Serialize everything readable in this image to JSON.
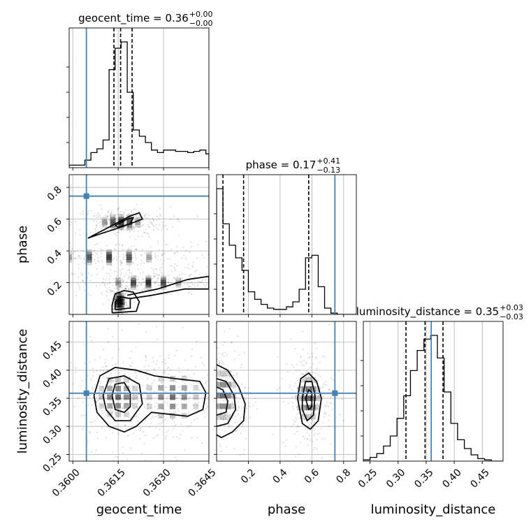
{
  "chart_data": {
    "type": "corner",
    "grid": true,
    "colors": {
      "truth": "#4682b4",
      "hist": "#000000"
    },
    "parameters": [
      {
        "name": "geocent_time",
        "label": "geocent_time",
        "range": [
          0.35988,
          0.3645
        ],
        "ticks": [
          "0.3600",
          "0.3615",
          "0.3630",
          "0.3645"
        ],
        "tick_values": [
          0.36,
          0.3615,
          0.363,
          0.3645
        ],
        "truth": 0.36045
      },
      {
        "name": "phase",
        "label": "phase",
        "range": [
          0.0,
          0.88
        ],
        "ticks": [
          "0.2",
          "0.4",
          "0.6",
          "0.8"
        ],
        "tick_values": [
          0.2,
          0.4,
          0.6,
          0.8
        ],
        "truth": 0.745
      },
      {
        "name": "luminosity_distance",
        "label": "luminosity_distance",
        "range": [
          0.238,
          0.487
        ],
        "ticks": [
          "0.25",
          "0.30",
          "0.35",
          "0.40",
          "0.45"
        ],
        "tick_values": [
          0.25,
          0.3,
          0.35,
          0.4,
          0.45
        ],
        "truth": 0.359
      }
    ],
    "titles": [
      {
        "text": "geocent_time = 0.36",
        "plus": "+0.00",
        "minus": "−0.00"
      },
      {
        "text": "phase = 0.17",
        "plus": "+0.41",
        "minus": "−0.13"
      },
      {
        "text": "luminosity_distance = 0.35",
        "plus": "+0.03",
        "minus": "−0.03"
      }
    ],
    "marginals": [
      {
        "bins": [
          0.35988,
          0.3604,
          0.3606,
          0.3608,
          0.361,
          0.3612,
          0.3614,
          0.3616,
          0.3618,
          0.362,
          0.3622,
          0.3624,
          0.3626,
          0.3628,
          0.363,
          0.3632,
          0.3634,
          0.3636,
          0.3638,
          0.364,
          0.3642,
          0.3644,
          0.3645
        ],
        "counts": [
          0.02,
          0.06,
          0.12,
          0.15,
          0.22,
          0.78,
          0.95,
          1.0,
          0.6,
          0.3,
          0.25,
          0.2,
          0.14,
          0.12,
          0.14,
          0.14,
          0.13,
          0.13,
          0.12,
          0.13,
          0.14,
          0.11
        ],
        "quantiles": [
          0.36136,
          0.36158,
          0.36196
        ]
      },
      {
        "bins": [
          0.0,
          0.04,
          0.08,
          0.12,
          0.16,
          0.2,
          0.24,
          0.28,
          0.32,
          0.36,
          0.4,
          0.44,
          0.48,
          0.52,
          0.56,
          0.6,
          0.64,
          0.68,
          0.72,
          0.76,
          0.8,
          0.84,
          0.88
        ],
        "counts": [
          1.0,
          0.72,
          0.55,
          0.45,
          0.35,
          0.18,
          0.12,
          0.08,
          0.05,
          0.04,
          0.04,
          0.06,
          0.1,
          0.2,
          0.45,
          0.47,
          0.22,
          0.05,
          0.01,
          0.0,
          0.0,
          0.0
        ],
        "quantiles": [
          0.04,
          0.17,
          0.58
        ]
      },
      {
        "bins": [
          0.238,
          0.25,
          0.262,
          0.274,
          0.286,
          0.298,
          0.31,
          0.322,
          0.334,
          0.346,
          0.358,
          0.37,
          0.382,
          0.394,
          0.406,
          0.418,
          0.43,
          0.442,
          0.454,
          0.466,
          0.478,
          0.487
        ],
        "counts": [
          0.01,
          0.03,
          0.06,
          0.12,
          0.2,
          0.34,
          0.52,
          0.72,
          0.88,
          0.97,
          1.0,
          0.82,
          0.55,
          0.3,
          0.17,
          0.1,
          0.05,
          0.02,
          0.01,
          0.0,
          0.0
        ],
        "quantiles": [
          0.314,
          0.348,
          0.38
        ]
      }
    ],
    "pairs": [
      {
        "x": 0,
        "y": 1,
        "blobs": [
          {
            "cx": 0.36155,
            "cy": 0.08,
            "sx": 8e-05,
            "sy": 0.035
          },
          {
            "cx": 0.3625,
            "cy": 0.2,
            "sx": 0.0009,
            "sy": 0.025
          },
          {
            "cx": 0.3616,
            "cy": 0.58,
            "sx": 0.0005,
            "sy": 0.03
          },
          {
            "cx": 0.3612,
            "cy": 0.36,
            "sx": 0.0012,
            "sy": 0.03
          }
        ],
        "contours": [
          [
            [
              0.3613,
              0.01
            ],
            [
              0.3621,
              0.02
            ],
            [
              0.3622,
              0.08
            ],
            [
              0.362,
              0.14
            ],
            [
              0.3617,
              0.15
            ],
            [
              0.3614,
              0.13
            ],
            [
              0.3613,
              0.06
            ],
            [
              0.3613,
              0.01
            ]
          ],
          [
            [
              0.3614,
              0.03
            ],
            [
              0.3619,
              0.04
            ],
            [
              0.3619,
              0.1
            ],
            [
              0.3616,
              0.11
            ],
            [
              0.3614,
              0.08
            ],
            [
              0.3614,
              0.03
            ]
          ],
          [
            [
              0.3618,
              0.12
            ],
            [
              0.3628,
              0.16
            ],
            [
              0.3638,
              0.22
            ],
            [
              0.3645,
              0.24
            ],
            [
              0.3645,
              0.16
            ],
            [
              0.3637,
              0.16
            ],
            [
              0.3626,
              0.12
            ],
            [
              0.3619,
              0.1
            ]
          ],
          [
            [
              0.3605,
              0.48
            ],
            [
              0.3612,
              0.55
            ],
            [
              0.3619,
              0.62
            ],
            [
              0.3622,
              0.64
            ],
            [
              0.3623,
              0.6
            ],
            [
              0.3616,
              0.55
            ],
            [
              0.3608,
              0.5
            ],
            [
              0.3605,
              0.48
            ]
          ],
          [
            [
              0.3614,
              0.56
            ],
            [
              0.3618,
              0.6
            ],
            [
              0.362,
              0.61
            ],
            [
              0.3619,
              0.57
            ],
            [
              0.3615,
              0.55
            ],
            [
              0.3614,
              0.56
            ]
          ]
        ]
      },
      {
        "x": 0,
        "y": 2,
        "blobs": [
          {
            "cx": 0.3615,
            "cy": 0.352,
            "sx": 0.0005,
            "sy": 0.028
          },
          {
            "cx": 0.3633,
            "cy": 0.352,
            "sx": 0.0007,
            "sy": 0.03
          }
        ],
        "contours": [
          [
            [
              0.3607,
              0.355
            ],
            [
              0.3609,
              0.39
            ],
            [
              0.3614,
              0.405
            ],
            [
              0.3621,
              0.4
            ],
            [
              0.3627,
              0.39
            ],
            [
              0.3634,
              0.385
            ],
            [
              0.3642,
              0.38
            ],
            [
              0.3644,
              0.36
            ],
            [
              0.3643,
              0.33
            ],
            [
              0.3638,
              0.318
            ],
            [
              0.3626,
              0.325
            ],
            [
              0.3621,
              0.3
            ],
            [
              0.3617,
              0.29
            ],
            [
              0.3612,
              0.3
            ],
            [
              0.3608,
              0.325
            ],
            [
              0.3607,
              0.355
            ]
          ],
          [
            [
              0.361,
              0.355
            ],
            [
              0.3612,
              0.385
            ],
            [
              0.3617,
              0.39
            ],
            [
              0.3622,
              0.375
            ],
            [
              0.3623,
              0.34
            ],
            [
              0.3619,
              0.31
            ],
            [
              0.3614,
              0.31
            ],
            [
              0.3611,
              0.33
            ],
            [
              0.361,
              0.355
            ]
          ],
          [
            [
              0.3613,
              0.355
            ],
            [
              0.3614,
              0.375
            ],
            [
              0.3617,
              0.378
            ],
            [
              0.3619,
              0.36
            ],
            [
              0.3619,
              0.335
            ],
            [
              0.3617,
              0.325
            ],
            [
              0.3614,
              0.33
            ],
            [
              0.3613,
              0.355
            ]
          ]
        ]
      },
      {
        "x": 1,
        "y": 2,
        "blobs": [
          {
            "cx": 0.04,
            "cy": 0.355,
            "sx": 0.06,
            "sy": 0.035
          },
          {
            "cx": 0.58,
            "cy": 0.35,
            "sx": 0.05,
            "sy": 0.03
          }
        ],
        "contours": [
          [
            [
              0.0,
              0.41
            ],
            [
              0.07,
              0.4
            ],
            [
              0.14,
              0.37
            ],
            [
              0.18,
              0.34
            ],
            [
              0.17,
              0.31
            ],
            [
              0.1,
              0.29
            ],
            [
              0.03,
              0.28
            ],
            [
              0.0,
              0.285
            ]
          ],
          [
            [
              0.0,
              0.385
            ],
            [
              0.06,
              0.38
            ],
            [
              0.11,
              0.355
            ],
            [
              0.12,
              0.33
            ],
            [
              0.07,
              0.305
            ],
            [
              0.0,
              0.3
            ]
          ],
          [
            [
              0.0,
              0.37
            ],
            [
              0.04,
              0.365
            ],
            [
              0.07,
              0.345
            ],
            [
              0.06,
              0.325
            ],
            [
              0.0,
              0.32
            ]
          ],
          [
            [
              0.51,
              0.35
            ],
            [
              0.53,
              0.385
            ],
            [
              0.58,
              0.395
            ],
            [
              0.63,
              0.38
            ],
            [
              0.66,
              0.35
            ],
            [
              0.64,
              0.31
            ],
            [
              0.59,
              0.295
            ],
            [
              0.54,
              0.305
            ],
            [
              0.51,
              0.35
            ]
          ],
          [
            [
              0.54,
              0.35
            ],
            [
              0.56,
              0.38
            ],
            [
              0.6,
              0.38
            ],
            [
              0.62,
              0.355
            ],
            [
              0.61,
              0.32
            ],
            [
              0.57,
              0.31
            ],
            [
              0.54,
              0.33
            ],
            [
              0.54,
              0.35
            ]
          ],
          [
            [
              0.56,
              0.35
            ],
            [
              0.58,
              0.365
            ],
            [
              0.6,
              0.36
            ],
            [
              0.6,
              0.335
            ],
            [
              0.58,
              0.33
            ],
            [
              0.56,
              0.35
            ]
          ]
        ]
      }
    ]
  }
}
